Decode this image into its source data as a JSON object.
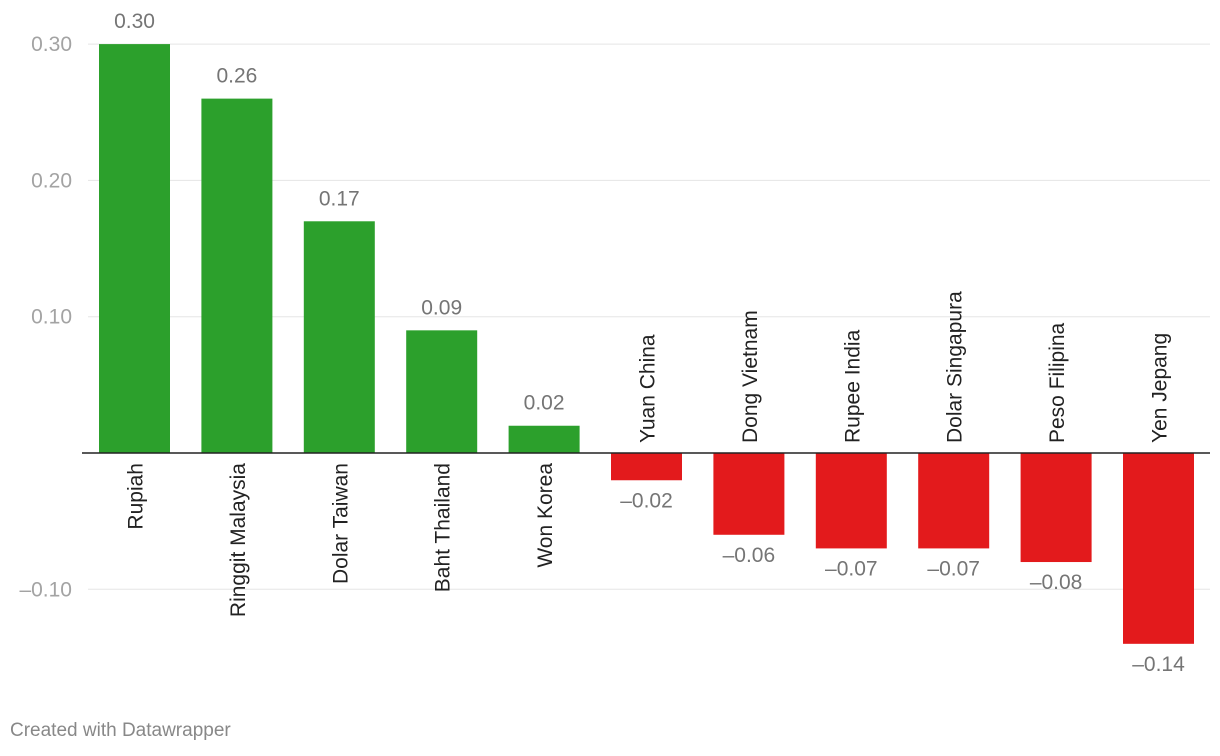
{
  "chart_data": {
    "type": "bar",
    "categories": [
      "Rupiah",
      "Ringgit Malaysia",
      "Dolar Taiwan",
      "Baht Thailand",
      "Won Korea",
      "Yuan China",
      "Dong Vietnam",
      "Rupee India",
      "Dolar Singapura",
      "Peso Filipina",
      "Yen Jepang"
    ],
    "values": [
      0.3,
      0.26,
      0.17,
      0.09,
      0.02,
      -0.02,
      -0.06,
      -0.07,
      -0.07,
      -0.08,
      -0.14
    ],
    "value_labels": [
      "0.30",
      "0.26",
      "0.17",
      "0.09",
      "0.02",
      "–0.02",
      "–0.06",
      "–0.07",
      "–0.07",
      "–0.08",
      "–0.14"
    ],
    "y_ticks": [
      0.3,
      0.2,
      0.1,
      -0.1
    ],
    "y_tick_labels": [
      "0.30",
      "0.20",
      "0.10",
      "–0.10"
    ],
    "ylim": [
      -0.15,
      0.3
    ],
    "grid": true,
    "title": "",
    "xlabel": "",
    "ylabel": "",
    "colors": {
      "positive": "#2ca02c",
      "negative": "#e31a1c"
    }
  },
  "footer": {
    "credit": "Created with Datawrapper"
  }
}
